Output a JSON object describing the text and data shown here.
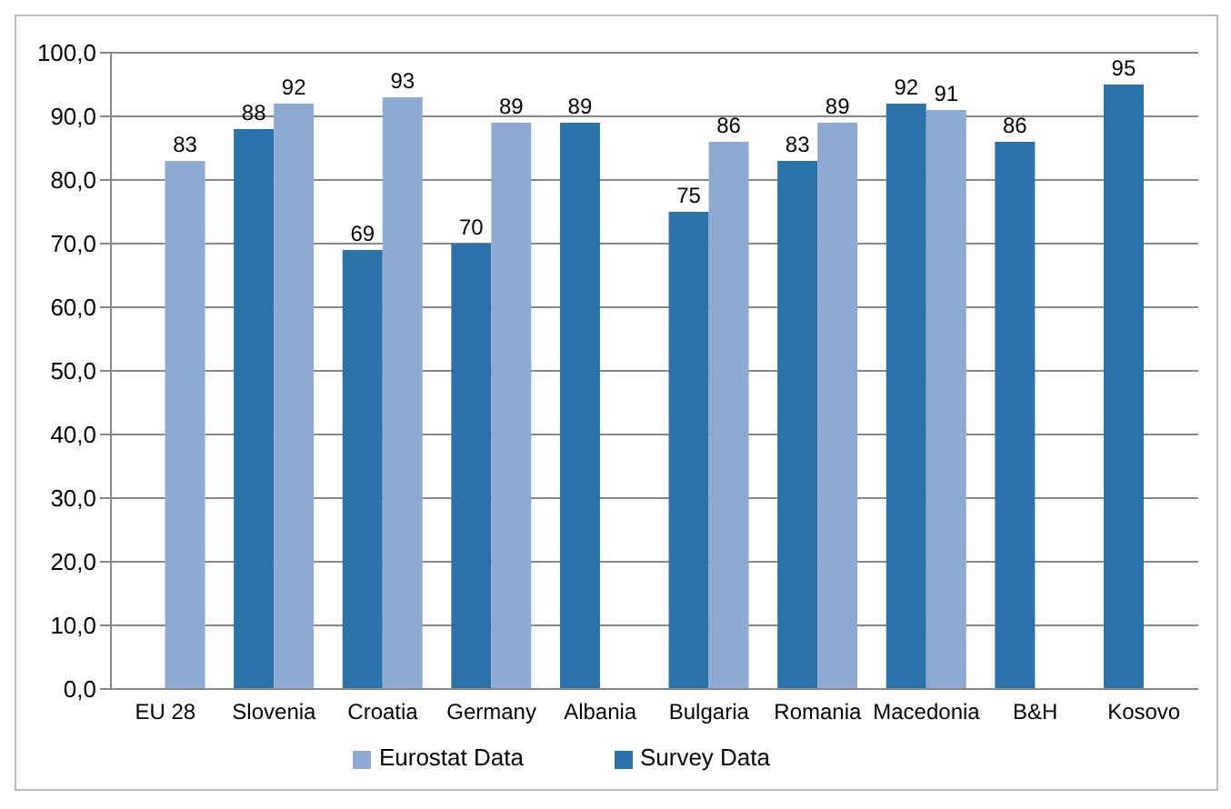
{
  "chart_data": {
    "type": "bar",
    "categories": [
      "EU 28",
      "Slovenia",
      "Croatia",
      "Germany",
      "Albania",
      "Bulgaria",
      "Romania",
      "Macedonia",
      "B&H",
      "Kosovo"
    ],
    "series": [
      {
        "name": "Survey Data",
        "color": "#2a72aa",
        "values": [
          null,
          88,
          69,
          70,
          89,
          75,
          83,
          92,
          86,
          95
        ]
      },
      {
        "name": "Eurostat Data",
        "color": "#8eaad3",
        "values": [
          83,
          92,
          93,
          89,
          null,
          86,
          89,
          91,
          null,
          null
        ]
      }
    ],
    "ylim": [
      0,
      100
    ],
    "yticks": [
      {
        "value": 0,
        "label": "0,0"
      },
      {
        "value": 10,
        "label": "10,0"
      },
      {
        "value": 20,
        "label": "20,0"
      },
      {
        "value": 30,
        "label": "30,0"
      },
      {
        "value": 40,
        "label": "40,0"
      },
      {
        "value": 50,
        "label": "50,0"
      },
      {
        "value": 60,
        "label": "60,0"
      },
      {
        "value": 70,
        "label": "70,0"
      },
      {
        "value": 80,
        "label": "80,0"
      },
      {
        "value": 90,
        "label": "90,0"
      },
      {
        "value": 100,
        "label": "100,0"
      }
    ],
    "grid": "y",
    "legend": "bottom",
    "data_labels": true
  }
}
